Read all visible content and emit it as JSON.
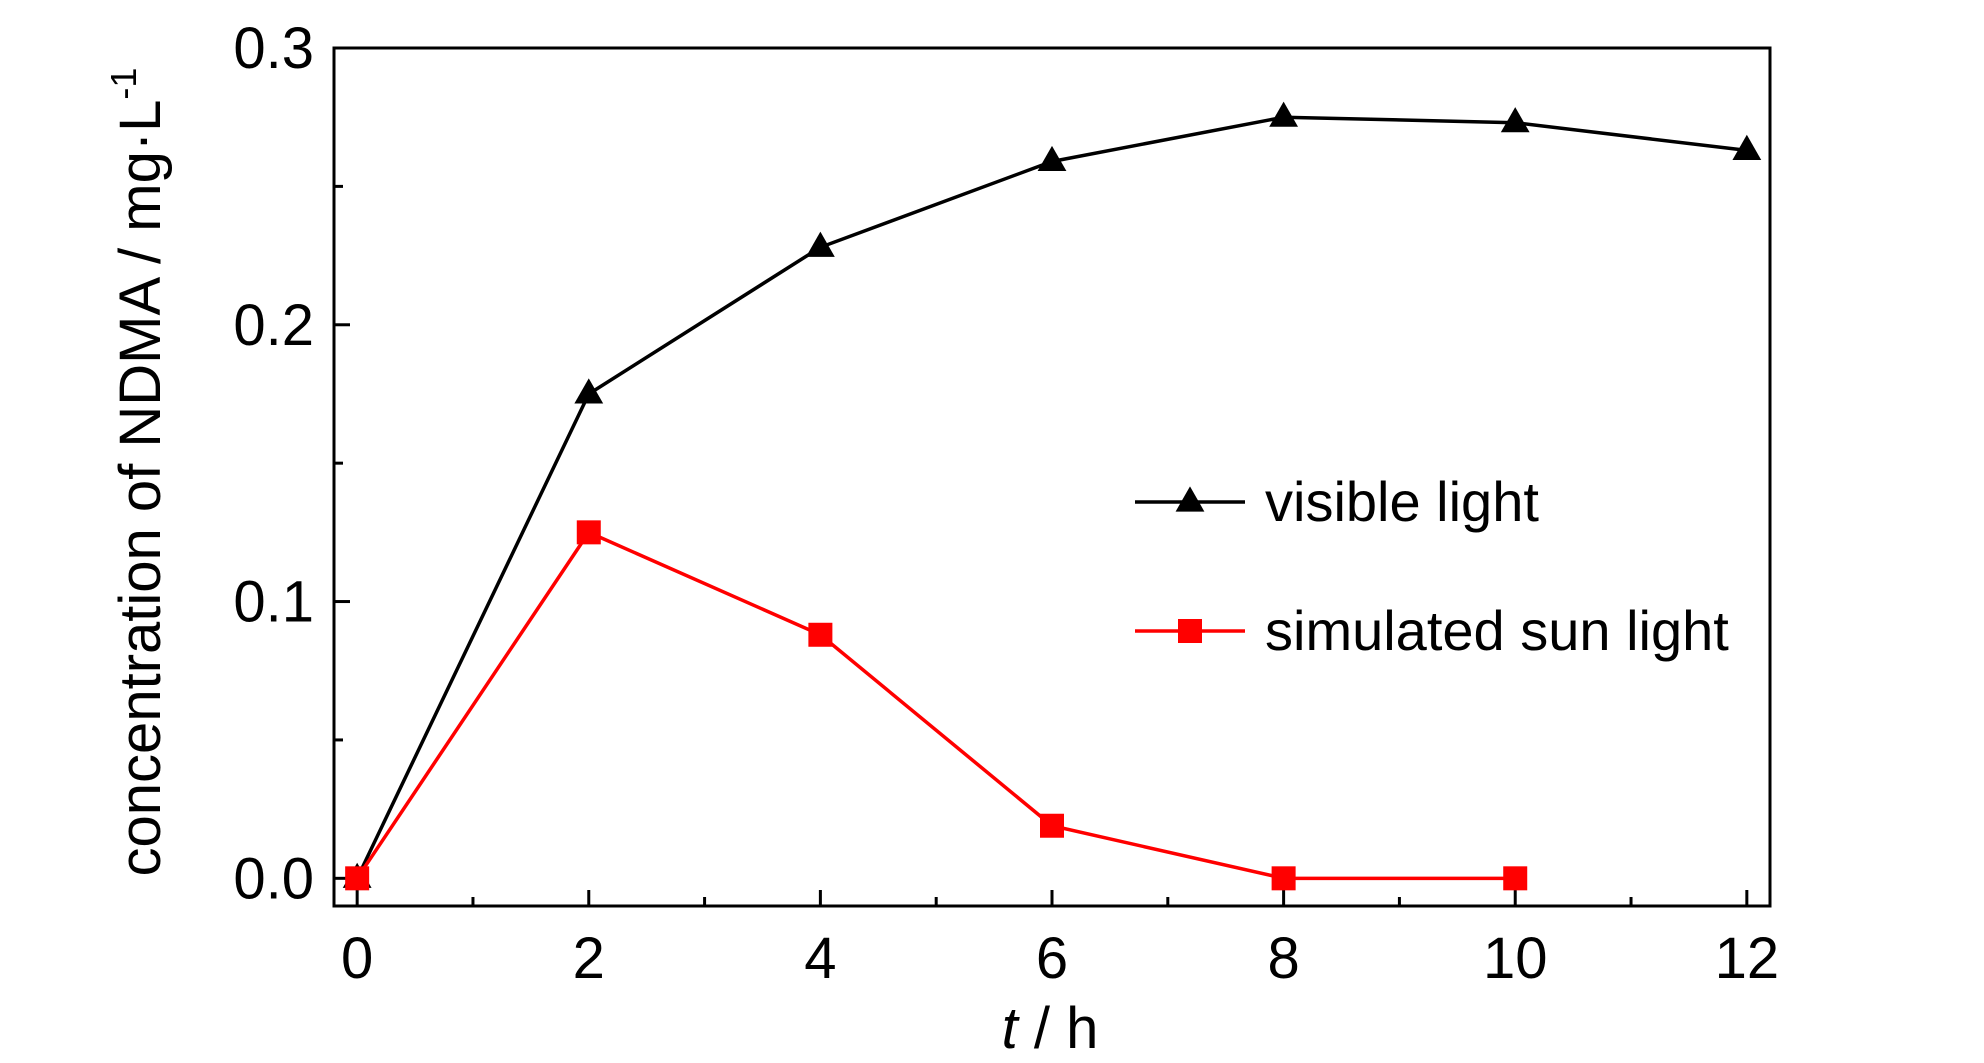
{
  "chart_data": {
    "type": "line",
    "x": [
      0,
      2,
      4,
      6,
      8,
      10,
      12
    ],
    "xlim": [
      -0.2,
      12.2
    ],
    "ylim": [
      -0.01,
      0.3
    ],
    "xticks": [
      0,
      2,
      4,
      6,
      8,
      10,
      12
    ],
    "xtick_labels": [
      "0",
      "2",
      "4",
      "6",
      "8",
      "10",
      "12"
    ],
    "yticks": [
      0.0,
      0.1,
      0.2,
      0.3
    ],
    "ytick_labels": [
      "0.0",
      "0.1",
      "0.2",
      "0.3"
    ],
    "xlabel": {
      "italic": "t",
      "rest": " / h"
    },
    "ylabel": {
      "main": "concentration of NDMA / mg·L",
      "sup": "-1"
    },
    "grid": false,
    "legend_position": "center-right",
    "series": [
      {
        "name": "visible light",
        "color": "#000000",
        "marker": "triangle",
        "x": [
          0,
          2,
          4,
          6,
          8,
          10,
          12
        ],
        "values": [
          0.0,
          0.175,
          0.228,
          0.259,
          0.275,
          0.273,
          0.263
        ]
      },
      {
        "name": "simulated sun light",
        "color": "#ff0000",
        "marker": "square",
        "x": [
          0,
          2,
          4,
          6,
          8,
          10
        ],
        "values": [
          0.0,
          0.125,
          0.088,
          0.019,
          0.0,
          0.0
        ]
      }
    ]
  }
}
